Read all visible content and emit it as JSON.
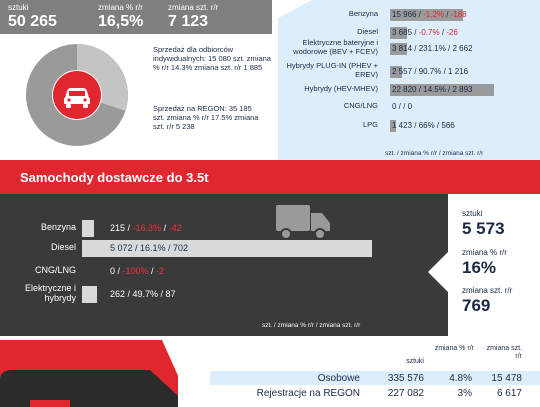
{
  "cars": {
    "stats": {
      "count_label": "sztuki",
      "count_value": "50 265",
      "pct_label": "zmiana % r/r",
      "pct_value": "16,5%",
      "units_label": "zmiana szt. r/r",
      "units_value": "7 123"
    },
    "donut": {
      "individual_share": 0.3,
      "individual_text": "Sprzedaż dla odbiorców indywidualnych: 15 080 szt. zmiana % r/r 14.3% zmiana szt. r/r 1 885",
      "regon_text": "Sprzedaż na REGON: 35 185 szt. zmiana % r/r 17.5% zmiana szt. r/r 5 238"
    },
    "fuels": [
      {
        "label": "Benzyna",
        "value": 15966,
        "text": "15 966 / ",
        "pct": "-1.2%",
        "sep": " / ",
        "delta": "-188",
        "negative": true
      },
      {
        "label": "Diesel",
        "value": 3685,
        "text": "3 685 / ",
        "pct": "-0.7%",
        "sep": " / ",
        "delta": "-26",
        "negative": true
      },
      {
        "label": "Elektryczne bateryjne i wodorowe (BEV + FCEV)",
        "value": 3814,
        "text": "3 814 / 231.1% / 2 662",
        "negative": false
      },
      {
        "label": "Hybrydy PLUG-IN (PHEV + EREV)",
        "value": 2557,
        "text": "2 557 / 90.7% / 1 216",
        "negative": false
      },
      {
        "label": "Hybrydy (HEV-MHEV)",
        "value": 22820,
        "text": "22 820 / 14.5% / 2 893",
        "negative": false
      },
      {
        "label": "CNG/LNG",
        "value": 0,
        "text": "0 / / 0",
        "negative": false
      },
      {
        "label": "LPG",
        "value": 1423,
        "text": "1 423 / 66% / 566",
        "negative": false
      }
    ],
    "footer": "szt. / zmiana % r/r / zmiana szt. r/r"
  },
  "vans": {
    "title": "Samochody dostawcze do 3.5t",
    "fuels": [
      {
        "label": "Benzyna",
        "value": 215,
        "text": "215 / ",
        "pct": "-16.3%",
        "sep": " / ",
        "delta": "-42",
        "negative": true
      },
      {
        "label": "Diesel",
        "value": 5072,
        "text": "5 072 / 16.1% / 702",
        "negative": false
      },
      {
        "label": "CNG/LNG",
        "value": 0,
        "text": "0 / ",
        "pct": "-100%",
        "sep": " / ",
        "delta": "-2",
        "negative": true
      },
      {
        "label": "Elektryczne i hybrydy",
        "value": 262,
        "text": "262 / 49.7% / 87",
        "negative": false
      }
    ],
    "footer": "szt. / zmiana % r/r / zmiana szt. r/r",
    "stats": {
      "count_label": "sztuki",
      "count_value": "5 573",
      "pct_label": "zmiana % r/r",
      "pct_value": "16%",
      "units_label": "zmiana szt. r/r",
      "units_value": "769"
    }
  },
  "bottom": {
    "headers": [
      "sztuki",
      "zmiana % r/r",
      "zmiana szt. r/r"
    ],
    "rows": [
      {
        "label": "Osobowe",
        "count": "335 576",
        "pct": "4.8%",
        "delta": "15 478"
      },
      {
        "label": "Rejestracje na REGON",
        "count": "227 082",
        "pct": "3%",
        "delta": "6 617"
      }
    ]
  },
  "colors": {
    "accent_red": "#e0262e",
    "navy": "#1a2a44",
    "grey_bar": "#9a9a9a",
    "light_blue": "#dceefb",
    "dark": "#3a3a3a"
  },
  "icons": {
    "car": "car-icon",
    "van": "van-icon"
  }
}
